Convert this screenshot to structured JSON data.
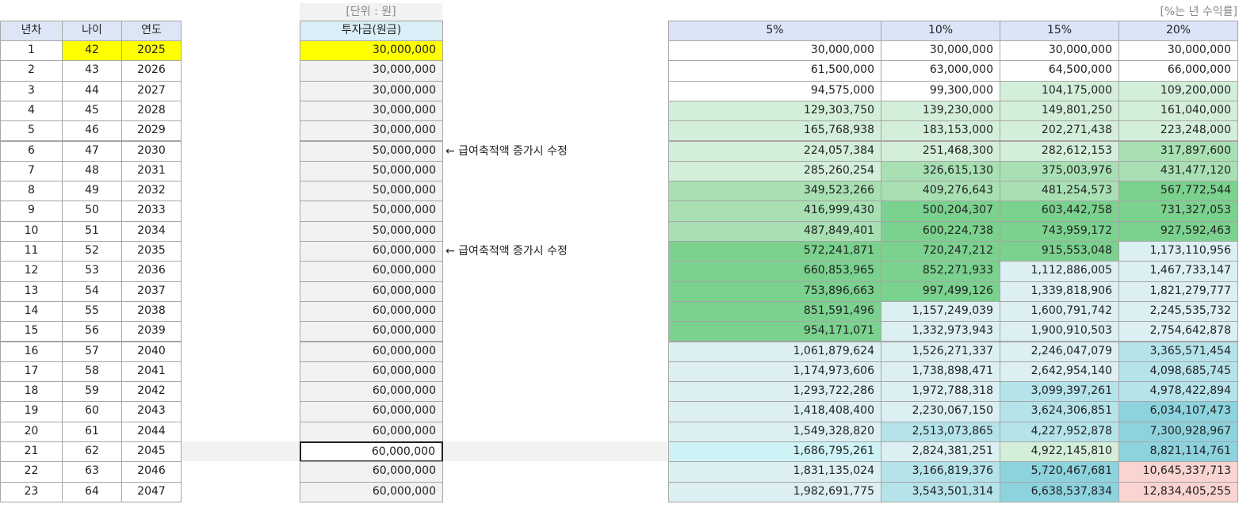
{
  "unit_label": "[단위 : 원]",
  "rate_label": "[%는 년 수익률]",
  "left": {
    "headers": [
      "년차",
      "나이",
      "연도"
    ]
  },
  "invest": {
    "header": "투자금(원금)",
    "rows": [
      {
        "year_no": 1,
        "age": 42,
        "year": 2025,
        "principal": "30,000,000"
      },
      {
        "year_no": 2,
        "age": 43,
        "year": 2026,
        "principal": "30,000,000"
      },
      {
        "year_no": 3,
        "age": 44,
        "year": 2027,
        "principal": "30,000,000"
      },
      {
        "year_no": 4,
        "age": 45,
        "year": 2028,
        "principal": "30,000,000"
      },
      {
        "year_no": 5,
        "age": 46,
        "year": 2029,
        "principal": "30,000,000"
      },
      {
        "year_no": 6,
        "age": 47,
        "year": 2030,
        "principal": "50,000,000",
        "note": "← 급여축적액 증가시 수정"
      },
      {
        "year_no": 7,
        "age": 48,
        "year": 2031,
        "principal": "50,000,000"
      },
      {
        "year_no": 8,
        "age": 49,
        "year": 2032,
        "principal": "50,000,000"
      },
      {
        "year_no": 9,
        "age": 50,
        "year": 2033,
        "principal": "50,000,000"
      },
      {
        "year_no": 10,
        "age": 51,
        "year": 2034,
        "principal": "50,000,000"
      },
      {
        "year_no": 11,
        "age": 52,
        "year": 2035,
        "principal": "60,000,000",
        "note": "← 급여축적액 증가시 수정"
      },
      {
        "year_no": 12,
        "age": 53,
        "year": 2036,
        "principal": "60,000,000"
      },
      {
        "year_no": 13,
        "age": 54,
        "year": 2037,
        "principal": "60,000,000"
      },
      {
        "year_no": 14,
        "age": 55,
        "year": 2038,
        "principal": "60,000,000"
      },
      {
        "year_no": 15,
        "age": 56,
        "year": 2039,
        "principal": "60,000,000"
      },
      {
        "year_no": 16,
        "age": 57,
        "year": 2040,
        "principal": "60,000,000"
      },
      {
        "year_no": 17,
        "age": 58,
        "year": 2041,
        "principal": "60,000,000"
      },
      {
        "year_no": 18,
        "age": 59,
        "year": 2042,
        "principal": "60,000,000"
      },
      {
        "year_no": 19,
        "age": 60,
        "year": 2043,
        "principal": "60,000,000"
      },
      {
        "year_no": 20,
        "age": 61,
        "year": 2044,
        "principal": "60,000,000"
      },
      {
        "year_no": 21,
        "age": 62,
        "year": 2045,
        "principal": "60,000,000"
      },
      {
        "year_no": 22,
        "age": 63,
        "year": 2046,
        "principal": "60,000,000"
      },
      {
        "year_no": 23,
        "age": 64,
        "year": 2047,
        "principal": "60,000,000"
      }
    ]
  },
  "returns": {
    "headers": [
      "5%",
      "10%",
      "15%",
      "20%"
    ],
    "rows": [
      [
        "30,000,000",
        "30,000,000",
        "30,000,000",
        "30,000,000"
      ],
      [
        "61,500,000",
        "63,000,000",
        "64,500,000",
        "66,000,000"
      ],
      [
        "94,575,000",
        "99,300,000",
        "104,175,000",
        "109,200,000"
      ],
      [
        "129,303,750",
        "139,230,000",
        "149,801,250",
        "161,040,000"
      ],
      [
        "165,768,938",
        "183,153,000",
        "202,271,438",
        "223,248,000"
      ],
      [
        "224,057,384",
        "251,468,300",
        "282,612,153",
        "317,897,600"
      ],
      [
        "285,260,254",
        "326,615,130",
        "375,003,976",
        "431,477,120"
      ],
      [
        "349,523,266",
        "409,276,643",
        "481,254,573",
        "567,772,544"
      ],
      [
        "416,999,430",
        "500,204,307",
        "603,442,758",
        "731,327,053"
      ],
      [
        "487,849,401",
        "600,224,738",
        "743,959,172",
        "927,592,463"
      ],
      [
        "572,241,871",
        "720,247,212",
        "915,553,048",
        "1,173,110,956"
      ],
      [
        "660,853,965",
        "852,271,933",
        "1,112,886,005",
        "1,467,733,147"
      ],
      [
        "753,896,663",
        "997,499,126",
        "1,339,818,906",
        "1,821,279,777"
      ],
      [
        "851,591,496",
        "1,157,249,039",
        "1,600,791,742",
        "2,245,535,732"
      ],
      [
        "954,171,071",
        "1,332,973,943",
        "1,900,910,503",
        "2,754,642,878"
      ],
      [
        "1,061,879,624",
        "1,526,271,337",
        "2,246,047,079",
        "3,365,571,454"
      ],
      [
        "1,174,973,606",
        "1,738,898,471",
        "2,642,954,140",
        "4,098,685,745"
      ],
      [
        "1,293,722,286",
        "1,972,788,318",
        "3,099,397,261",
        "4,978,422,894"
      ],
      [
        "1,418,408,400",
        "2,230,067,150",
        "3,624,306,851",
        "6,034,107,473"
      ],
      [
        "1,549,328,820",
        "2,513,073,865",
        "4,227,952,878",
        "7,300,928,967"
      ],
      [
        "1,686,795,261",
        "2,824,381,251",
        "4,922,145,810",
        "8,821,114,761"
      ],
      [
        "1,831,135,024",
        "3,166,819,376",
        "5,720,467,681",
        "10,645,337,713"
      ],
      [
        "1,982,691,775",
        "3,543,501,314",
        "6,638,537,834",
        "12,834,405,255"
      ]
    ]
  }
}
